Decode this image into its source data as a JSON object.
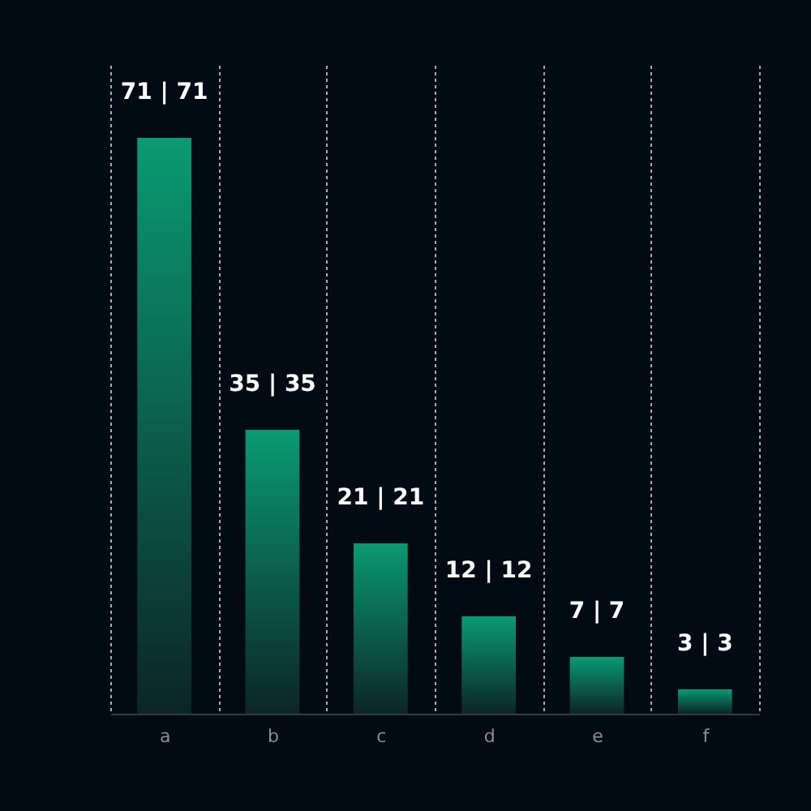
{
  "chart_data": {
    "type": "bar",
    "categories": [
      "a",
      "b",
      "c",
      "d",
      "e",
      "f"
    ],
    "values": [
      71,
      35,
      21,
      12,
      7,
      3
    ],
    "value_labels": [
      "71 | 71",
      "35 | 35",
      "21 | 21",
      "12 | 12",
      "7 | 7",
      "3 | 3"
    ],
    "color": "#0a9a72",
    "ylim": [
      0,
      80
    ],
    "grid": "x"
  }
}
